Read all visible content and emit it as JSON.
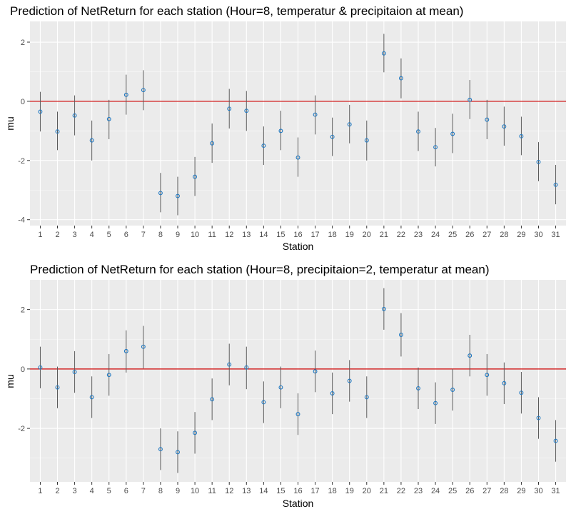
{
  "chart_data": [
    {
      "type": "scatter",
      "title": "Prediction of NetReturn for each station (Hour=8, temperatur & precipitaion at mean)",
      "xlabel": "Station",
      "ylabel": "mu",
      "categories": [
        "1",
        "2",
        "3",
        "4",
        "5",
        "6",
        "7",
        "8",
        "9",
        "10",
        "11",
        "12",
        "13",
        "14",
        "15",
        "16",
        "17",
        "18",
        "19",
        "20",
        "21",
        "22",
        "23",
        "24",
        "25",
        "26",
        "27",
        "28",
        "29",
        "30",
        "31"
      ],
      "values": [
        -0.35,
        -1.02,
        -0.48,
        -1.32,
        -0.6,
        0.22,
        0.38,
        -3.1,
        -3.2,
        -2.55,
        -1.42,
        -0.25,
        -0.32,
        -1.5,
        -1.0,
        -1.9,
        -0.45,
        -1.2,
        -0.78,
        -1.32,
        1.62,
        0.78,
        -1.02,
        -1.55,
        -1.1,
        0.05,
        -0.62,
        -0.85,
        -1.18,
        -2.05,
        -2.82
      ],
      "lower": [
        -1.02,
        -1.65,
        -1.15,
        -2.0,
        -1.28,
        -0.45,
        -0.3,
        -3.75,
        -3.85,
        -3.2,
        -2.08,
        -0.92,
        -1.0,
        -2.15,
        -1.65,
        -2.55,
        -1.12,
        -1.85,
        -1.42,
        -2.0,
        0.98,
        0.1,
        -1.68,
        -2.2,
        -1.75,
        -0.6,
        -1.28,
        -1.5,
        -1.82,
        -2.7,
        -3.48
      ],
      "upper": [
        0.32,
        -0.35,
        0.2,
        -0.65,
        0.05,
        0.9,
        1.05,
        -2.42,
        -2.55,
        -1.88,
        -0.75,
        0.42,
        0.35,
        -0.85,
        -0.32,
        -1.22,
        0.2,
        -0.55,
        -0.12,
        -0.65,
        2.28,
        1.45,
        -0.35,
        -0.9,
        -0.42,
        0.72,
        0.05,
        -0.18,
        -0.52,
        -1.38,
        -2.15
      ],
      "reference_line": 0,
      "ylim": [
        -4.2,
        2.7
      ],
      "y_ticks": [
        -4,
        -2,
        0,
        2
      ],
      "colors": {
        "point": "#1f78c1",
        "errorbar": "#5a5a5a",
        "reference": "#cc0000",
        "panel": "#ebebeb",
        "grid": "#ffffff"
      },
      "grid": true
    },
    {
      "type": "scatter",
      "title": "Prediction of NetReturn for each station (Hour=8, precipitaion=2, temperatur at mean)",
      "xlabel": "Station",
      "ylabel": "mu",
      "categories": [
        "1",
        "2",
        "3",
        "4",
        "5",
        "6",
        "7",
        "8",
        "9",
        "10",
        "11",
        "12",
        "13",
        "14",
        "15",
        "16",
        "17",
        "18",
        "19",
        "20",
        "21",
        "22",
        "23",
        "24",
        "25",
        "26",
        "27",
        "28",
        "29",
        "30",
        "31"
      ],
      "values": [
        0.05,
        -0.62,
        -0.1,
        -0.95,
        -0.2,
        0.6,
        0.75,
        -2.7,
        -2.8,
        -2.15,
        -1.02,
        0.15,
        0.05,
        -1.12,
        -0.62,
        -1.52,
        -0.08,
        -0.82,
        -0.4,
        -0.95,
        2.02,
        1.15,
        -0.65,
        -1.15,
        -0.7,
        0.45,
        -0.2,
        -0.48,
        -0.8,
        -1.65,
        -2.42
      ],
      "lower": [
        -0.65,
        -1.32,
        -0.8,
        -1.65,
        -0.9,
        -0.12,
        0.02,
        -3.4,
        -3.5,
        -2.85,
        -1.72,
        -0.55,
        -0.68,
        -1.82,
        -1.32,
        -2.22,
        -0.78,
        -1.52,
        -1.1,
        -1.65,
        1.32,
        0.42,
        -1.35,
        -1.85,
        -1.4,
        -0.25,
        -0.9,
        -1.18,
        -1.5,
        -2.35,
        -3.12
      ],
      "upper": [
        0.75,
        0.08,
        0.6,
        -0.25,
        0.5,
        1.3,
        1.45,
        -2.0,
        -2.1,
        -1.45,
        -0.32,
        0.85,
        0.75,
        -0.42,
        0.08,
        -0.82,
        0.62,
        -0.12,
        0.3,
        -0.25,
        2.72,
        1.88,
        0.05,
        -0.45,
        0.0,
        1.15,
        0.5,
        0.22,
        -0.1,
        -0.95,
        -1.72
      ],
      "reference_line": 0,
      "ylim": [
        -3.8,
        3.0
      ],
      "y_ticks": [
        -2,
        0,
        2
      ],
      "colors": {
        "point": "#1f78c1",
        "errorbar": "#5a5a5a",
        "reference": "#cc0000",
        "panel": "#ebebeb",
        "grid": "#ffffff"
      },
      "grid": true
    }
  ]
}
